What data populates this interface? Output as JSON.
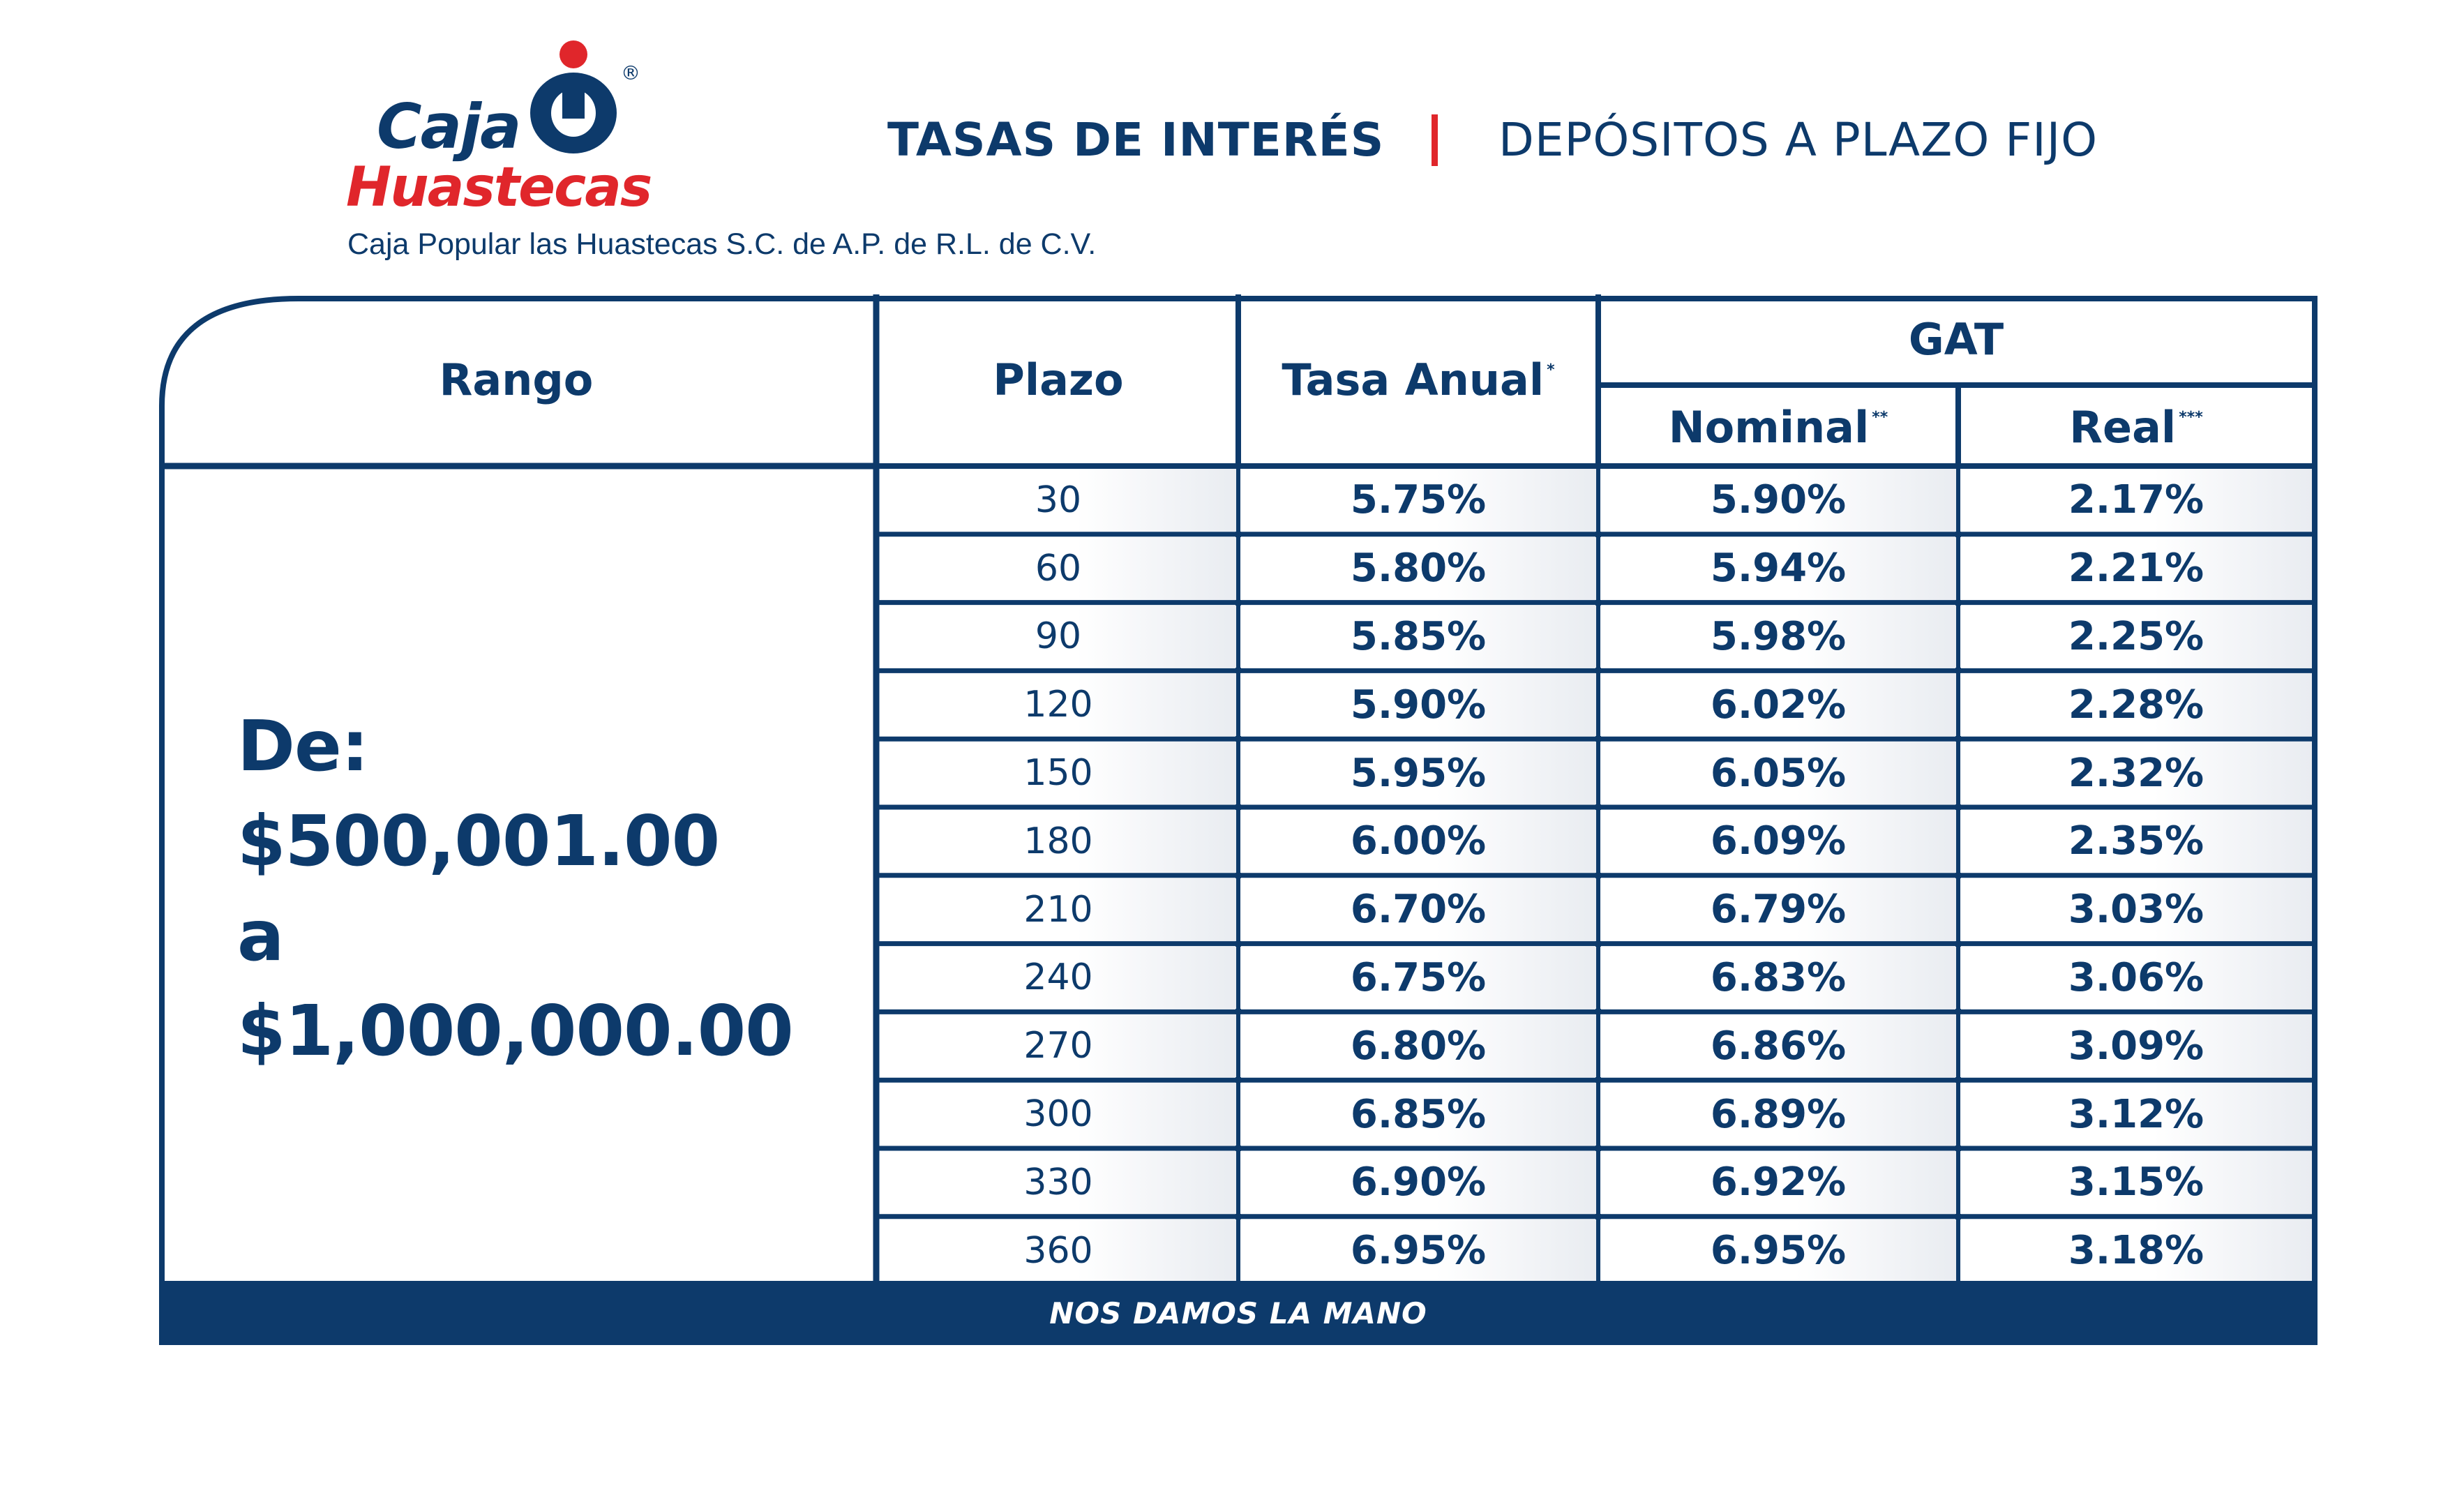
{
  "brand": {
    "logo_word1": "Caja",
    "logo_word2": "Huastecas",
    "registered": "®",
    "tagline": "Caja Popular las Huastecas S.C. de A.P.  de R.L. de C.V.",
    "logo_icon": "caja-huastecas-logo-mark"
  },
  "header": {
    "title_left": "TASAS DE INTERÉS",
    "separator": "|",
    "title_right": "DEPÓSITOS A PLAZO FIJO"
  },
  "table": {
    "columns": {
      "range": "Rango",
      "term": "Plazo",
      "annual_rate": "Tasa Anual",
      "annual_rate_mark": "*",
      "gat": "GAT",
      "nominal": "Nominal",
      "nominal_mark": "**",
      "real": "Real",
      "real_mark": "***"
    },
    "range_text": {
      "line1": "De:",
      "line2": "$500,001.00",
      "line3": "a",
      "line4": "$1,000,000.00"
    },
    "rows": [
      {
        "plazo": "30",
        "tasa": "5.75%",
        "nominal": "5.90%",
        "real": "2.17%"
      },
      {
        "plazo": "60",
        "tasa": "5.80%",
        "nominal": "5.94%",
        "real": "2.21%"
      },
      {
        "plazo": "90",
        "tasa": "5.85%",
        "nominal": "5.98%",
        "real": "2.25%"
      },
      {
        "plazo": "120",
        "tasa": "5.90%",
        "nominal": "6.02%",
        "real": "2.28%"
      },
      {
        "plazo": "150",
        "tasa": "5.95%",
        "nominal": "6.05%",
        "real": "2.32%"
      },
      {
        "plazo": "180",
        "tasa": "6.00%",
        "nominal": "6.09%",
        "real": "2.35%"
      },
      {
        "plazo": "210",
        "tasa": "6.70%",
        "nominal": "6.79%",
        "real": "3.03%"
      },
      {
        "plazo": "240",
        "tasa": "6.75%",
        "nominal": "6.83%",
        "real": "3.06%"
      },
      {
        "plazo": "270",
        "tasa": "6.80%",
        "nominal": "6.86%",
        "real": "3.09%"
      },
      {
        "plazo": "300",
        "tasa": "6.85%",
        "nominal": "6.89%",
        "real": "3.12%"
      },
      {
        "plazo": "330",
        "tasa": "6.90%",
        "nominal": "6.92%",
        "real": "3.15%"
      },
      {
        "plazo": "360",
        "tasa": "6.95%",
        "nominal": "6.95%",
        "real": "3.18%"
      }
    ],
    "footer": "NOS DAMOS LA MANO"
  },
  "colors": {
    "navy": "#0d3a6b",
    "red": "#e0262b",
    "cell_shade": "#e9ecf1"
  }
}
